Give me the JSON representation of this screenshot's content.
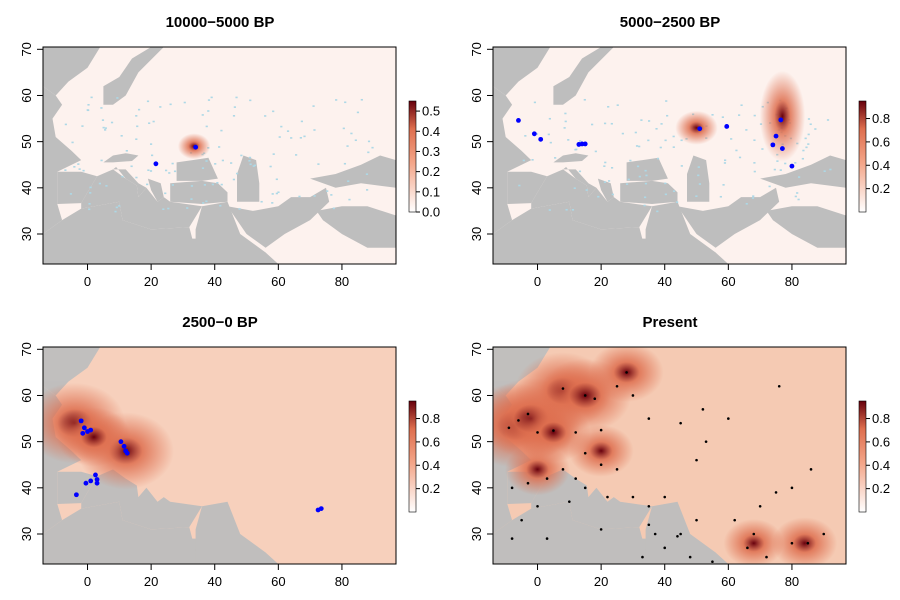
{
  "panels": [
    {
      "title": "10000−5000 BP",
      "legend": {
        "ticks": [
          "0.5",
          "0.4",
          "0.3",
          "0.2",
          "0.1",
          "0.0"
        ],
        "max": 0.55
      },
      "hotspots": [
        {
          "lon": 33.5,
          "lat": 49,
          "value": 0.55
        }
      ],
      "points": [
        {
          "lon": 34,
          "lat": 48.8
        },
        {
          "lon": 21.5,
          "lat": 45.2
        }
      ],
      "point_color": "#0000ff",
      "background_fill": "#fdf2ee"
    },
    {
      "title": "5000−2500 BP",
      "legend": {
        "ticks": [
          "0.8",
          "0.6",
          "0.4",
          "0.2"
        ],
        "max": 0.95
      },
      "hotspots": [
        {
          "lon": 77,
          "lat": 55.5,
          "value": 0.9
        },
        {
          "lon": 50,
          "lat": 53,
          "value": 0.25
        }
      ],
      "points": [
        {
          "lon": -6,
          "lat": 54.6
        },
        {
          "lon": -1,
          "lat": 51.7
        },
        {
          "lon": 1,
          "lat": 50.5
        },
        {
          "lon": 13,
          "lat": 49.4
        },
        {
          "lon": 14,
          "lat": 49.5
        },
        {
          "lon": 15,
          "lat": 49.5
        },
        {
          "lon": 51,
          "lat": 52.8
        },
        {
          "lon": 59.5,
          "lat": 53.3
        },
        {
          "lon": 76.5,
          "lat": 54.7
        },
        {
          "lon": 75,
          "lat": 51.2
        },
        {
          "lon": 74,
          "lat": 49.3
        },
        {
          "lon": 77,
          "lat": 48.5
        },
        {
          "lon": 80,
          "lat": 44.7
        }
      ],
      "point_color": "#0000ff",
      "background_fill": "#fdf2ee"
    },
    {
      "title": "2500−0 BP",
      "legend": {
        "ticks": [
          "0.8",
          "0.6",
          "0.4",
          "0.2"
        ],
        "max": 0.95
      },
      "hotspots": [
        {
          "lon": -4,
          "lat": 54,
          "value": 0.9
        },
        {
          "lon": 12,
          "lat": 48,
          "value": 0.85
        },
        {
          "lon": 2,
          "lat": 51,
          "value": 0.6
        }
      ],
      "points": [
        {
          "lon": -2,
          "lat": 54.5
        },
        {
          "lon": -1,
          "lat": 53
        },
        {
          "lon": 0,
          "lat": 52.2
        },
        {
          "lon": 1,
          "lat": 52.5
        },
        {
          "lon": -1.5,
          "lat": 51.8
        },
        {
          "lon": 10.5,
          "lat": 50
        },
        {
          "lon": 11.5,
          "lat": 49
        },
        {
          "lon": 12,
          "lat": 48
        },
        {
          "lon": 12.5,
          "lat": 47.5
        },
        {
          "lon": 2.5,
          "lat": 42.8
        },
        {
          "lon": 3,
          "lat": 41.8
        },
        {
          "lon": 1,
          "lat": 41.5
        },
        {
          "lon": -0.5,
          "lat": 41
        },
        {
          "lon": 3,
          "lat": 41
        },
        {
          "lon": -3.5,
          "lat": 38.5
        },
        {
          "lon": 72.5,
          "lat": 35.2
        },
        {
          "lon": 73.5,
          "lat": 35.5
        }
      ],
      "point_color": "#0000ff",
      "background_fill": "#f7d0bc"
    },
    {
      "title": "Present",
      "legend": {
        "ticks": [
          "0.8",
          "0.6",
          "0.4",
          "0.2"
        ],
        "max": 0.95
      },
      "hotspots": [
        {
          "lon": -7,
          "lat": 53.5,
          "value": 0.95
        },
        {
          "lon": -2,
          "lat": 55,
          "value": 0.9
        },
        {
          "lon": 8,
          "lat": 61,
          "value": 0.85
        },
        {
          "lon": 15,
          "lat": 60,
          "value": 0.8
        },
        {
          "lon": 5,
          "lat": 52,
          "value": 0.6
        },
        {
          "lon": 28,
          "lat": 65,
          "value": 0.6
        },
        {
          "lon": 20,
          "lat": 48,
          "value": 0.5
        },
        {
          "lon": 0,
          "lat": 44,
          "value": 0.5
        },
        {
          "lon": 68,
          "lat": 28,
          "value": 0.45
        },
        {
          "lon": 84,
          "lat": 28,
          "value": 0.5
        }
      ],
      "points": [
        {
          "lon": -9,
          "lat": 53
        },
        {
          "lon": -6,
          "lat": 54.6
        },
        {
          "lon": -3,
          "lat": 56
        },
        {
          "lon": 0,
          "lat": 52
        },
        {
          "lon": 5,
          "lat": 52.4
        },
        {
          "lon": 8,
          "lat": 61.5
        },
        {
          "lon": 15,
          "lat": 60
        },
        {
          "lon": 18,
          "lat": 59.3
        },
        {
          "lon": 25,
          "lat": 62
        },
        {
          "lon": 28,
          "lat": 65
        },
        {
          "lon": 30,
          "lat": 60
        },
        {
          "lon": 12,
          "lat": 52
        },
        {
          "lon": 20,
          "lat": 52.5
        },
        {
          "lon": 15,
          "lat": 47.5
        },
        {
          "lon": 20,
          "lat": 45
        },
        {
          "lon": 25,
          "lat": 44
        },
        {
          "lon": 35,
          "lat": 55
        },
        {
          "lon": 45,
          "lat": 54
        },
        {
          "lon": 52,
          "lat": 57
        },
        {
          "lon": 60,
          "lat": 55
        },
        {
          "lon": 53,
          "lat": 50
        },
        {
          "lon": 50,
          "lat": 46
        },
        {
          "lon": 75,
          "lat": 39
        },
        {
          "lon": 80,
          "lat": 40
        },
        {
          "lon": 70,
          "lat": 36
        },
        {
          "lon": 68,
          "lat": 30
        },
        {
          "lon": 66,
          "lat": 27
        },
        {
          "lon": 72,
          "lat": 25
        },
        {
          "lon": 80,
          "lat": 28
        },
        {
          "lon": 85,
          "lat": 28
        },
        {
          "lon": 90,
          "lat": 30
        },
        {
          "lon": 86,
          "lat": 44
        },
        {
          "lon": 76,
          "lat": 62
        },
        {
          "lon": 35,
          "lat": 32
        },
        {
          "lon": 37,
          "lat": 30
        },
        {
          "lon": 45,
          "lat": 30
        },
        {
          "lon": 40,
          "lat": 27
        },
        {
          "lon": 48,
          "lat": 25
        },
        {
          "lon": 55,
          "lat": 24
        },
        {
          "lon": 33,
          "lat": 25
        },
        {
          "lon": 35,
          "lat": 36
        },
        {
          "lon": 40,
          "lat": 38
        },
        {
          "lon": 30,
          "lat": 38
        },
        {
          "lon": 22,
          "lat": 38
        },
        {
          "lon": 10,
          "lat": 37
        },
        {
          "lon": 0,
          "lat": 36
        },
        {
          "lon": -5,
          "lat": 33
        },
        {
          "lon": -8,
          "lat": 40
        },
        {
          "lon": -3,
          "lat": 41
        },
        {
          "lon": 3,
          "lat": 42
        },
        {
          "lon": 8,
          "lat": 44
        },
        {
          "lon": 12,
          "lat": 42
        },
        {
          "lon": 15,
          "lat": 40
        },
        {
          "lon": -8,
          "lat": 29
        },
        {
          "lon": 3,
          "lat": 29
        },
        {
          "lon": 20,
          "lat": 31
        },
        {
          "lon": 44,
          "lat": 29.5
        },
        {
          "lon": 50,
          "lat": 33
        },
        {
          "lon": 62,
          "lat": 33
        }
      ],
      "point_color": "#000000",
      "background_fill": "#f5cab3"
    }
  ],
  "axes": {
    "x_ticks": [
      "0",
      "20",
      "40",
      "60",
      "80"
    ],
    "y_ticks": [
      "30",
      "40",
      "50",
      "60",
      "70"
    ]
  },
  "colors": {
    "land_gray": "#bebebe",
    "freshwater": "#add8e6",
    "scale_low": "#fff5f0",
    "scale_mid": "#de6e4e",
    "scale_high": "#67000d"
  }
}
